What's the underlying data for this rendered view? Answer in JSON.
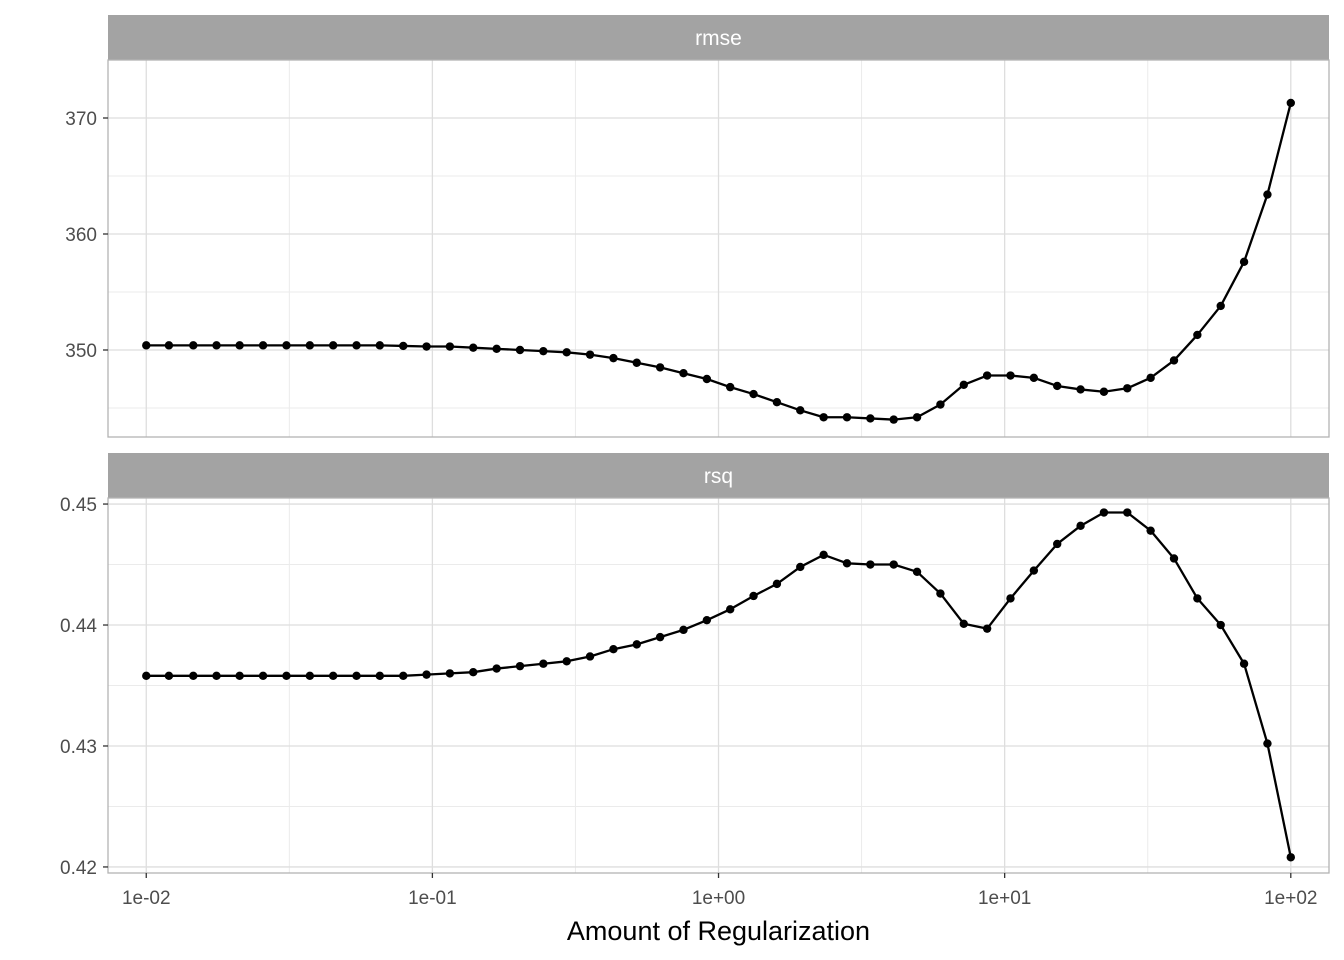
{
  "chart_data": {
    "type": "line",
    "xlabel": "Amount of Regularization",
    "x_scale": "log10",
    "x_ticks": [
      0.01,
      0.1,
      1,
      10,
      100
    ],
    "x_tick_labels": [
      "1e-02",
      "1e-01",
      "1e+00",
      "1e+01",
      "1e+02"
    ],
    "x_range": [
      0.00735,
      136
    ],
    "grid": true,
    "panels": [
      {
        "strip": "rmse",
        "y_range": [
          342.5,
          375
        ],
        "y_ticks": [
          350,
          360,
          370
        ],
        "y_tick_labels": [
          "350",
          "360",
          "370"
        ],
        "y_minor": [
          345,
          355,
          365
        ],
        "series": [
          {
            "x": [
              0.01,
              0.012,
              0.0146,
              0.0176,
              0.0212,
              0.0256,
              0.0309,
              0.0373,
              0.045,
              0.0543,
              0.0655,
              0.0791,
              0.0954,
              0.1151,
              0.1389,
              0.1677,
              0.2024,
              0.2442,
              0.2947,
              0.3556,
              0.4292,
              0.5179,
              0.6251,
              0.7543,
              0.9103,
              1.0985,
              1.3257,
              1.5999,
              1.9307,
              2.33,
              2.8118,
              3.3932,
              4.0949,
              4.9417,
              5.9636,
              7.1969,
              8.6851,
              10.4811,
              12.6486,
              15.2642,
              18.4207,
              22.23,
              26.827,
              32.3746,
              39.0694,
              47.1487,
              56.8987,
              68.6649,
              82.8643,
              100
            ],
            "y": [
              350.4,
              350.4,
              350.4,
              350.4,
              350.4,
              350.4,
              350.4,
              350.4,
              350.4,
              350.4,
              350.4,
              350.35,
              350.3,
              350.3,
              350.2,
              350.1,
              350.0,
              349.9,
              349.8,
              349.6,
              349.3,
              348.9,
              348.5,
              348.0,
              347.5,
              346.8,
              346.2,
              345.5,
              344.8,
              344.2,
              344.2,
              344.1,
              344.0,
              344.2,
              345.3,
              347.0,
              347.8,
              347.8,
              347.6,
              346.9,
              346.6,
              346.4,
              346.7,
              347.6,
              349.1,
              351.3,
              353.8,
              357.6,
              363.4,
              371.3
            ]
          }
        ]
      },
      {
        "strip": "rsq",
        "y_range": [
          0.4195,
          0.4505
        ],
        "y_ticks": [
          0.42,
          0.43,
          0.44,
          0.45
        ],
        "y_tick_labels": [
          "0.42",
          "0.43",
          "0.44",
          "0.45"
        ],
        "y_minor": [
          0.425,
          0.435,
          0.445
        ],
        "series": [
          {
            "x": [
              0.01,
              0.012,
              0.0146,
              0.0176,
              0.0212,
              0.0256,
              0.0309,
              0.0373,
              0.045,
              0.0543,
              0.0655,
              0.0791,
              0.0954,
              0.1151,
              0.1389,
              0.1677,
              0.2024,
              0.2442,
              0.2947,
              0.3556,
              0.4292,
              0.5179,
              0.6251,
              0.7543,
              0.9103,
              1.0985,
              1.3257,
              1.5999,
              1.9307,
              2.33,
              2.8118,
              3.3932,
              4.0949,
              4.9417,
              5.9636,
              7.1969,
              8.6851,
              10.4811,
              12.6486,
              15.2642,
              18.4207,
              22.23,
              26.827,
              32.3746,
              39.0694,
              47.1487,
              56.8987,
              68.6649,
              82.8643,
              100
            ],
            "y": [
              0.4358,
              0.4358,
              0.4358,
              0.4358,
              0.4358,
              0.4358,
              0.4358,
              0.4358,
              0.4358,
              0.4358,
              0.4358,
              0.4358,
              0.4359,
              0.436,
              0.4361,
              0.4364,
              0.4366,
              0.4368,
              0.437,
              0.4374,
              0.438,
              0.4384,
              0.439,
              0.4396,
              0.4404,
              0.4413,
              0.4424,
              0.4434,
              0.4448,
              0.4458,
              0.4451,
              0.445,
              0.445,
              0.4444,
              0.4426,
              0.4401,
              0.4397,
              0.4422,
              0.4445,
              0.4467,
              0.4482,
              0.4493,
              0.4493,
              0.4478,
              0.4455,
              0.4422,
              0.44,
              0.4368,
              0.4302,
              0.4208
            ]
          }
        ]
      }
    ]
  }
}
